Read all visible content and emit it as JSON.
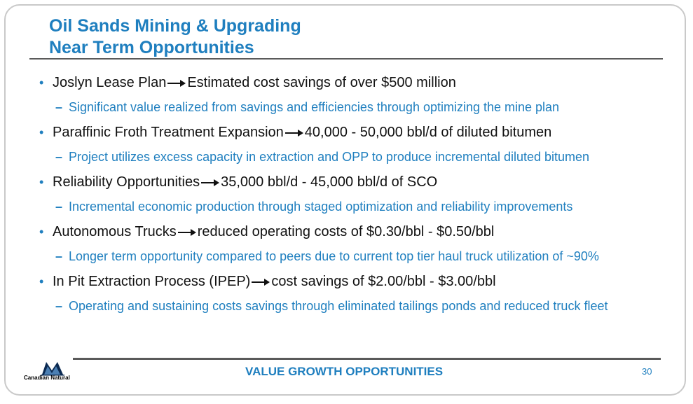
{
  "slide": {
    "title_line1": "Oil Sands Mining & Upgrading",
    "title_line2": "Near Term Opportunities",
    "bullets": [
      {
        "lead": "Joslyn Lease Plan",
        "detail": "Estimated cost savings of over $500 million",
        "sub": "Significant value realized from savings and efficiencies through optimizing the mine plan"
      },
      {
        "lead": "Paraffinic Froth Treatment Expansion",
        "detail": "40,000 - 50,000 bbl/d of diluted bitumen",
        "sub": "Project utilizes excess capacity in extraction and OPP to produce incremental diluted bitumen"
      },
      {
        "lead": "Reliability Opportunities",
        "detail": "35,000 bbl/d - 45,000 bbl/d of SCO",
        "sub": "Incremental economic production through staged optimization and reliability improvements"
      },
      {
        "lead": "Autonomous Trucks",
        "detail": "reduced operating costs of $0.30/bbl - $0.50/bbl",
        "sub": "Longer term opportunity compared to peers due to current top tier haul truck utilization of ~90%"
      },
      {
        "lead": "In Pit Extraction Process (IPEP)",
        "detail": "cost savings of $2.00/bbl - $3.00/bbl",
        "sub": "Operating and sustaining costs savings through eliminated tailings ponds and reduced truck fleet"
      }
    ]
  },
  "footer": {
    "company": "Canadian Natural",
    "tagline": "VALUE GROWTH OPPORTUNITIES",
    "page_number": "30"
  },
  "colors": {
    "accent_blue": "#1f7fbf",
    "rule_gray": "#5a5a5a",
    "frame_gray": "#c9c9c9"
  },
  "icons": {
    "bullet": "bullet-dot-icon",
    "arrow": "right-arrow-icon",
    "logo": "canadian-natural-logo"
  }
}
